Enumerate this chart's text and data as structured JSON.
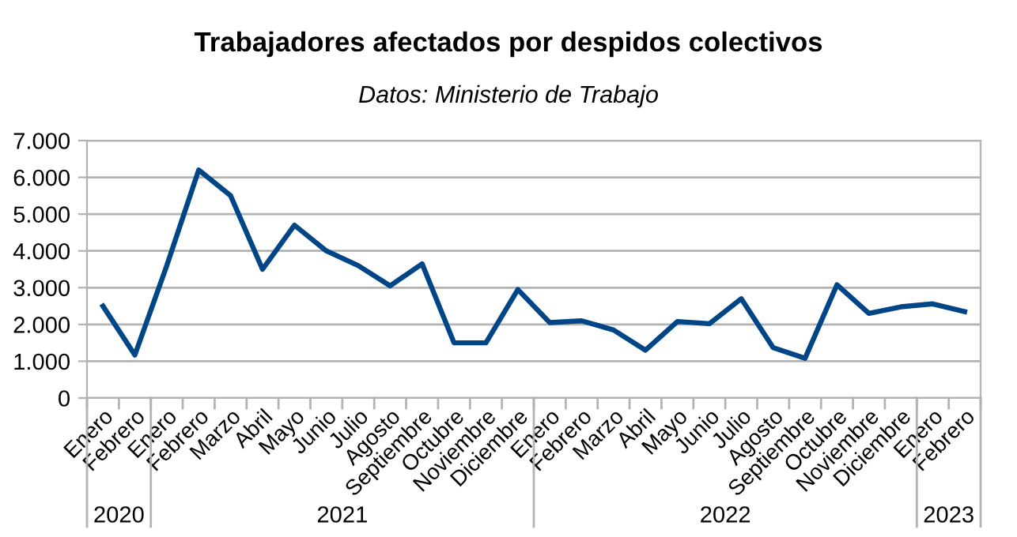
{
  "chart_data": {
    "type": "line",
    "title": "Trabajadores afectados por despidos colectivos",
    "subtitle": "Datos: Ministerio de Trabajo",
    "categories": [
      "Enero",
      "Febrero",
      "Enero",
      "Febrero",
      "Marzo",
      "Abril",
      "Mayo",
      "Junio",
      "Julio",
      "Agosto",
      "Septiembre",
      "Octubre",
      "Noviembre",
      "Diciembre",
      "Enero",
      "Febrero",
      "Marzo",
      "Abril",
      "Mayo",
      "Junio",
      "Julio",
      "Agosto",
      "Septiembre",
      "Octubre",
      "Noviembre",
      "Diciembre",
      "Enero",
      "Febrero"
    ],
    "series": [
      {
        "color": "#004586",
        "values": [
          2500,
          1170,
          3600,
          6200,
          5500,
          3500,
          4700,
          4000,
          3600,
          3050,
          3650,
          1500,
          1500,
          2950,
          2050,
          2100,
          1850,
          1300,
          2080,
          2020,
          2700,
          1370,
          1080,
          3080,
          2300,
          2480,
          2560,
          2350
        ]
      }
    ],
    "annotations": [
      "2020",
      "2021",
      "2022",
      "2023"
    ],
    "ylim": [
      0,
      7000
    ],
    "yticks": [
      {
        "value": 0,
        "label": "0"
      },
      {
        "value": 1000,
        "label": "1.000"
      },
      {
        "value": 2000,
        "label": "2.000"
      },
      {
        "value": 3000,
        "label": "3.000"
      },
      {
        "value": 4000,
        "label": "4.000"
      },
      {
        "value": 5000,
        "label": "5.000"
      },
      {
        "value": 6000,
        "label": "6.000"
      },
      {
        "value": 7000,
        "label": "7.000"
      }
    ],
    "grid": "y",
    "legend": false,
    "marker": "none",
    "line_style": "solid"
  }
}
